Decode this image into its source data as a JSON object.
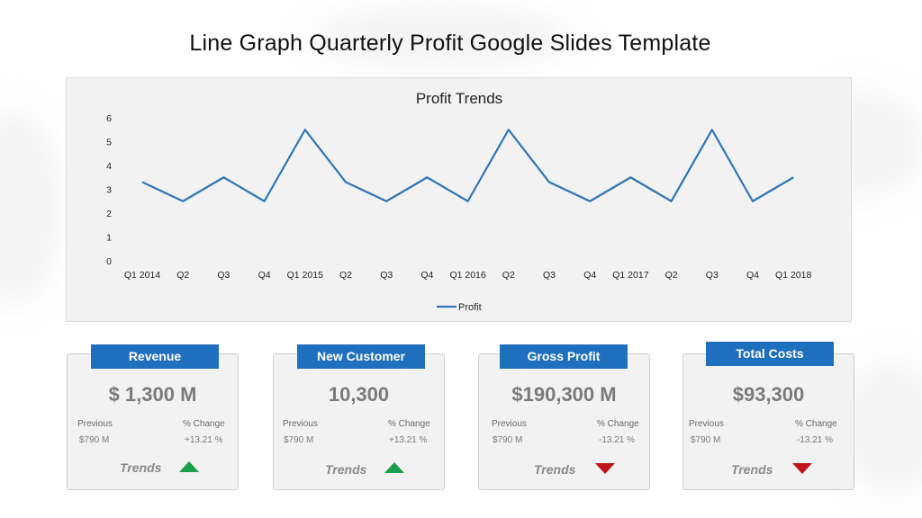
{
  "page": {
    "title": "Line Graph Quarterly Profit Google Slides Template"
  },
  "colors": {
    "line": "#2e75b6",
    "header_blue": "#1f6fbf",
    "up_green": "#1aa04a",
    "down_red": "#c0151a"
  },
  "chart_data": {
    "type": "line",
    "title": "Profit Trends",
    "categories": [
      "Q1 2014",
      "Q2",
      "Q3",
      "Q4",
      "Q1 2015",
      "Q2",
      "Q3",
      "Q4",
      "Q1 2016",
      "Q2",
      "Q3",
      "Q4",
      "Q1 2017",
      "Q2",
      "Q3",
      "Q4",
      "Q1 2018"
    ],
    "series": [
      {
        "name": "Profit",
        "values": [
          3.3,
          2.5,
          3.5,
          2.5,
          5.5,
          3.3,
          2.5,
          3.5,
          2.5,
          5.5,
          3.3,
          2.5,
          3.5,
          2.5,
          5.5,
          2.5,
          3.5
        ]
      }
    ],
    "yticks": [
      "0",
      "1",
      "2",
      "3",
      "4",
      "5",
      "6"
    ],
    "ylim": [
      0,
      6
    ],
    "legend": "bottom",
    "grid": false
  },
  "cards": [
    {
      "header": "Revenue",
      "value": "$ 1,300 M",
      "previous_label": "Previous",
      "change_label": "% Change",
      "previous": "$790 M",
      "change": "+13.21 %",
      "trends_label": "Trends",
      "trend": "up"
    },
    {
      "header": "New Customer",
      "value": "10,300",
      "previous_label": "Previous",
      "change_label": "% Change",
      "previous": "$790 M",
      "change": "+13.21 %",
      "trends_label": "Trends",
      "trend": "up"
    },
    {
      "header": "Gross Profit",
      "value": "$190,300 M",
      "previous_label": "Previous",
      "change_label": "% Change",
      "previous": "$790 M",
      "change": "-13.21 %",
      "trends_label": "Trends",
      "trend": "down"
    },
    {
      "header": "Total Costs",
      "value": "$93,300",
      "previous_label": "Previous",
      "change_label": "% Change",
      "previous": "$790 M",
      "change": "-13.21 %",
      "trends_label": "Trends",
      "trend": "down"
    }
  ]
}
